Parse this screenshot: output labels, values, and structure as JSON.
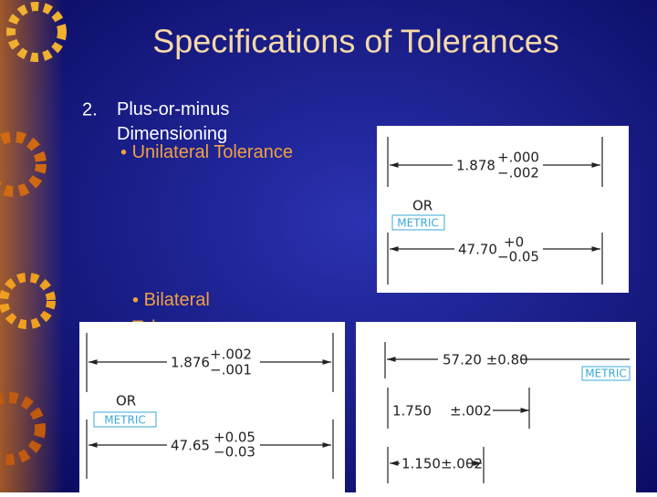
{
  "title": "Specifications of Tolerances",
  "outline": {
    "number": "2.",
    "text": "Plus-or-minus Dimensioning",
    "bullets": [
      "Unilateral Tolerance",
      "Bilateral",
      "Tolerance"
    ]
  },
  "figures": [
    {
      "labels": [
        "1.878",
        "+.000",
        "−.002",
        "OR",
        "METRIC",
        "47.70",
        "+0",
        "−0.05"
      ]
    },
    {
      "labels": [
        "1.876",
        "+.002",
        "−.001",
        "OR",
        "METRIC",
        "47.65",
        "+0.05",
        "−0.03"
      ]
    },
    {
      "labels": [
        "57.20 ±0.80",
        "METRIC",
        "1.750",
        "±.002",
        "1.150±.002"
      ]
    }
  ]
}
